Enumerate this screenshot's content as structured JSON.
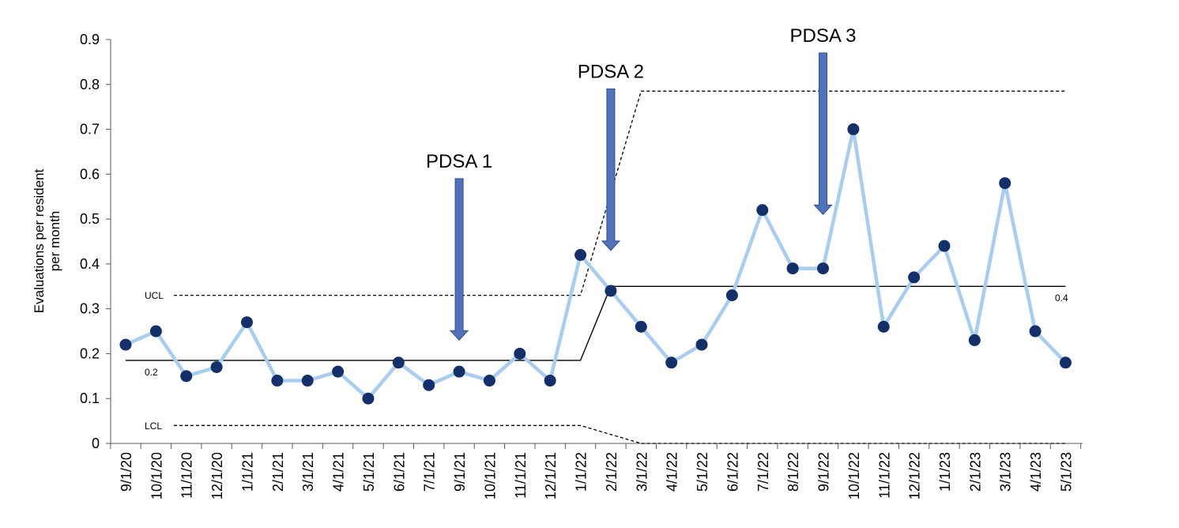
{
  "chart_data": {
    "type": "line",
    "title": "",
    "ylabel": [
      "Evaluations per resident",
      "per month"
    ],
    "xlabel": "",
    "ylim": [
      0,
      0.9
    ],
    "yticks": [
      "0",
      "0.1",
      "0.2",
      "0.3",
      "0.4",
      "0.5",
      "0.6",
      "0.7",
      "0.8",
      "0.9"
    ],
    "categories": [
      "9/1/20",
      "10/1/20",
      "11/1/20",
      "12/1/20",
      "1/1/21",
      "2/1/21",
      "3/1/21",
      "4/1/21",
      "5/1/21",
      "6/1/21",
      "7/1/21",
      "9/1/21",
      "10/1/21",
      "11/1/21",
      "12/1/21",
      "1/1/22",
      "2/1/22",
      "3/1/22",
      "4/1/22",
      "5/1/22",
      "6/1/22",
      "7/1/22",
      "8/1/22",
      "9/1/22",
      "10/1/22",
      "11/1/22",
      "12/1/22",
      "1/1/23",
      "2/1/23",
      "3/1/23",
      "4/1/23",
      "5/1/23"
    ],
    "series": [
      {
        "values": [
          0.22,
          0.25,
          0.15,
          0.17,
          0.27,
          0.14,
          0.14,
          0.16,
          0.1,
          0.18,
          0.13,
          0.16,
          0.14,
          0.2,
          0.14,
          0.42,
          0.34,
          0.26,
          0.18,
          0.22,
          0.33,
          0.52,
          0.39,
          0.39,
          0.7,
          0.26,
          0.37,
          0.44,
          0.23,
          0.58,
          0.25,
          0.18
        ],
        "line_color": "#a9cdf0",
        "marker_color": "#13306b"
      }
    ],
    "center_line": [
      {
        "x": "9/1/20",
        "y": 0.185
      },
      {
        "x": "1/1/22",
        "y": 0.185
      },
      {
        "x": "2/1/22",
        "y": 0.35
      },
      {
        "x": "5/1/23",
        "y": 0.35
      }
    ],
    "ucl": [
      {
        "x": "9/1/20",
        "y": 0.33
      },
      {
        "x": "1/1/22",
        "y": 0.33
      },
      {
        "x": "3/1/22",
        "y": 0.785
      },
      {
        "x": "5/1/23",
        "y": 0.785
      }
    ],
    "lcl": [
      {
        "x": "9/1/20",
        "y": 0.04
      },
      {
        "x": "1/1/22",
        "y": 0.04
      },
      {
        "x": "3/1/22",
        "y": 0.0
      },
      {
        "x": "5/1/23",
        "y": 0.0
      }
    ],
    "labels": {
      "ucl": "UCL",
      "lcl": "LCL",
      "center_before": "0.2",
      "center_after": "0.4"
    },
    "annotations": [
      {
        "text": "PDSA 1",
        "at": "9/1/21",
        "arrow_top": 0.59,
        "arrow_bottom": 0.23
      },
      {
        "text": "PDSA 2",
        "at": "2/1/22",
        "arrow_top": 0.79,
        "arrow_bottom": 0.43
      },
      {
        "text": "PDSA 3",
        "at": "9/1/22",
        "arrow_top": 0.87,
        "arrow_bottom": 0.51
      }
    ],
    "colors": {
      "arrow": "#4f72bb",
      "axis": "#595959"
    },
    "grid": false,
    "legend": "none"
  }
}
